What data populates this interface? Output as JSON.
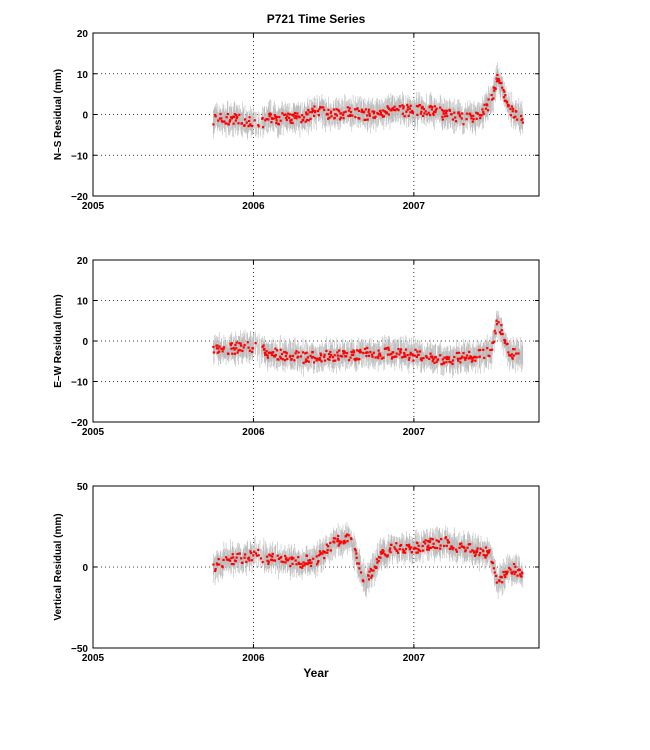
{
  "figure": {
    "title": "P721 Time Series",
    "xlabel": "Year"
  },
  "chart_data": [
    {
      "type": "scatter",
      "title": "P721 Time Series",
      "xlabel": "",
      "ylabel": "N–S Residual (mm)",
      "xlim": [
        2005,
        2007.78
      ],
      "ylim": [
        -20,
        20
      ],
      "xticks": [
        2005,
        2006,
        2007
      ],
      "yticks": [
        -20,
        -10,
        0,
        10,
        20
      ],
      "grid": "dotted",
      "marker_color": "#ff0000",
      "errorbar_color": "#bbbbbb",
      "series": [
        {
          "x": [
            2005.75,
            2005.85,
            2005.95,
            2006.02,
            2006.1,
            2006.2,
            2006.3,
            2006.4,
            2006.5,
            2006.6,
            2006.7,
            2006.8,
            2006.9,
            2007.0,
            2007.1,
            2007.2,
            2007.3,
            2007.4,
            2007.48,
            2007.52,
            2007.6,
            2007.68
          ],
          "y": [
            -1,
            -1,
            -1.5,
            -3,
            -1,
            -1,
            -1,
            1,
            0,
            0.5,
            0,
            0.5,
            1,
            1,
            1,
            0,
            -1,
            -0.5,
            3,
            9,
            1,
            -1
          ]
        }
      ]
    },
    {
      "type": "scatter",
      "xlabel": "",
      "ylabel": "E–W Residual (mm)",
      "xlim": [
        2005,
        2007.78
      ],
      "ylim": [
        -20,
        20
      ],
      "xticks": [
        2005,
        2006,
        2007
      ],
      "yticks": [
        -20,
        -10,
        0,
        10,
        20
      ],
      "grid": "dotted",
      "marker_color": "#ff0000",
      "errorbar_color": "#bbbbbb",
      "series": [
        {
          "x": [
            2005.75,
            2005.85,
            2005.95,
            2006.02,
            2006.1,
            2006.2,
            2006.3,
            2006.4,
            2006.5,
            2006.6,
            2006.7,
            2006.8,
            2006.9,
            2007.0,
            2007.1,
            2007.2,
            2007.3,
            2007.4,
            2007.48,
            2007.52,
            2007.6,
            2007.68
          ],
          "y": [
            -2,
            -2,
            -1.5,
            -1.5,
            -3,
            -3.5,
            -4,
            -4,
            -3.5,
            -3.5,
            -3,
            -3,
            -3,
            -3.5,
            -4,
            -4.5,
            -4,
            -3.5,
            -3,
            5,
            -3,
            -3.5
          ]
        }
      ]
    },
    {
      "type": "scatter",
      "xlabel": "Year",
      "ylabel": "Vertical Residual (mm)",
      "xlim": [
        2005,
        2007.78
      ],
      "ylim": [
        -50,
        50
      ],
      "xticks": [
        2005,
        2006,
        2007
      ],
      "yticks": [
        -50,
        0,
        50
      ],
      "grid": "dotted",
      "marker_color": "#ff0000",
      "errorbar_color": "#bbbbbb",
      "series": [
        {
          "x": [
            2005.75,
            2005.85,
            2005.95,
            2006.02,
            2006.1,
            2006.2,
            2006.3,
            2006.4,
            2006.5,
            2006.6,
            2006.7,
            2006.8,
            2006.9,
            2007.0,
            2007.1,
            2007.2,
            2007.3,
            2007.4,
            2007.48,
            2007.52,
            2007.6,
            2007.68
          ],
          "y": [
            0,
            5,
            5,
            8,
            5,
            4,
            3,
            5,
            15,
            18,
            -10,
            8,
            12,
            12,
            14,
            15,
            12,
            10,
            8,
            -10,
            0,
            -5
          ]
        }
      ]
    }
  ]
}
